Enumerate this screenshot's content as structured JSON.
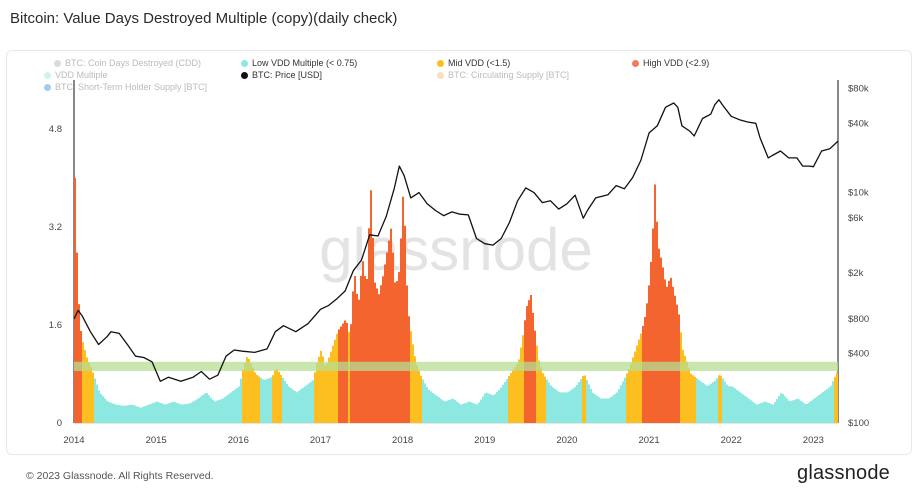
{
  "page": {
    "title": "Bitcoin: Value Days Destroyed Multiple (copy)(daily check)",
    "footer": "© 2023 Glassnode. All Rights Reserved.",
    "brand": "glassnode",
    "watermark": "glassnode"
  },
  "legend": [
    {
      "label": "BTC: Coin Days Destroyed (CDD)",
      "color": "#b0b0b0",
      "faded": true
    },
    {
      "label": "Low VDD Multiple (< 0.75)",
      "color": "#8ee8e2",
      "faded": false
    },
    {
      "label": "Mid VDD (<1.5)",
      "color": "#fdbf1f",
      "faded": false
    },
    {
      "label": "High VDD (<2.9)",
      "color": "#f47a5e",
      "faded": false
    },
    {
      "label": "VDD Multiple",
      "color": "#8ee8e2",
      "faded": true
    },
    {
      "label": "BTC: Price [USD]",
      "color": "#111111",
      "faded": false
    },
    {
      "label": "BTC: Circulating Supply [BTC]",
      "color": "#f7b86a",
      "faded": true
    },
    {
      "label": "BTC: Short-Term Holder Supply [BTC]",
      "color": "#2f8fe0",
      "faded": true
    }
  ],
  "chart_data": {
    "type": "area",
    "x_range": [
      2014.0,
      2023.3
    ],
    "x_ticks": [
      "2014",
      "2015",
      "2016",
      "2017",
      "2018",
      "2019",
      "2020",
      "2021",
      "2022",
      "2023"
    ],
    "y_left": {
      "range": [
        0,
        5.6
      ],
      "ticks": [
        "0",
        "1.6",
        "3.2",
        "4.8"
      ]
    },
    "y_right": {
      "scale": "log",
      "range": [
        100,
        95000
      ],
      "ticks": [
        "$100",
        "$400",
        "$800",
        "$2k",
        "$6k",
        "$10k",
        "$40k",
        "$80k"
      ]
    },
    "bands": {
      "low_max": 0.75,
      "mid_max": 1.5,
      "high_max": 2.9,
      "highlight_band": [
        0.85,
        1.0
      ]
    },
    "colors": {
      "low": "#8ee8e2",
      "mid": "#fdbf1f",
      "high": "#f4642e",
      "price": "#111111",
      "band": "#b7dd94"
    },
    "vdd_multiple": {
      "x": [
        2014.0,
        2014.03,
        2014.06,
        2014.1,
        2014.15,
        2014.2,
        2014.25,
        2014.3,
        2014.4,
        2014.5,
        2014.6,
        2014.7,
        2014.8,
        2014.9,
        2015.0,
        2015.1,
        2015.2,
        2015.3,
        2015.4,
        2015.5,
        2015.6,
        2015.7,
        2015.8,
        2015.9,
        2016.0,
        2016.05,
        2016.1,
        2016.2,
        2016.3,
        2016.4,
        2016.45,
        2016.5,
        2016.6,
        2016.7,
        2016.8,
        2016.9,
        2016.95,
        2017.0,
        2017.05,
        2017.1,
        2017.2,
        2017.3,
        2017.35,
        2017.4,
        2017.45,
        2017.5,
        2017.55,
        2017.6,
        2017.65,
        2017.7,
        2017.75,
        2017.8,
        2017.85,
        2017.9,
        2017.95,
        2018.0,
        2018.05,
        2018.1,
        2018.15,
        2018.2,
        2018.3,
        2018.4,
        2018.5,
        2018.6,
        2018.7,
        2018.8,
        2018.9,
        2019.0,
        2019.1,
        2019.2,
        2019.3,
        2019.4,
        2019.45,
        2019.5,
        2019.55,
        2019.6,
        2019.65,
        2019.7,
        2019.8,
        2019.9,
        2020.0,
        2020.1,
        2020.2,
        2020.3,
        2020.4,
        2020.5,
        2020.6,
        2020.7,
        2020.75,
        2020.8,
        2020.85,
        2020.9,
        2020.95,
        2021.0,
        2021.03,
        2021.06,
        2021.1,
        2021.15,
        2021.2,
        2021.25,
        2021.3,
        2021.35,
        2021.4,
        2021.5,
        2021.6,
        2021.7,
        2021.8,
        2021.85,
        2021.9,
        2021.95,
        2022.0,
        2022.1,
        2022.2,
        2022.3,
        2022.4,
        2022.5,
        2022.6,
        2022.7,
        2022.8,
        2022.9,
        2023.0,
        2023.1,
        2023.2,
        2023.3
      ],
      "y": [
        4.0,
        2.5,
        1.6,
        1.3,
        1.05,
        0.9,
        0.7,
        0.5,
        0.35,
        0.3,
        0.28,
        0.3,
        0.25,
        0.3,
        0.35,
        0.3,
        0.35,
        0.3,
        0.32,
        0.4,
        0.5,
        0.35,
        0.4,
        0.5,
        0.6,
        0.9,
        1.1,
        0.8,
        0.7,
        0.75,
        0.9,
        0.8,
        0.6,
        0.5,
        0.6,
        0.7,
        1.0,
        1.2,
        0.9,
        1.1,
        1.5,
        1.7,
        1.4,
        2.5,
        1.9,
        2.7,
        2.2,
        3.9,
        2.3,
        2.1,
        2.4,
        2.8,
        3.2,
        2.2,
        2.5,
        3.9,
        1.9,
        1.4,
        1.0,
        0.8,
        0.55,
        0.45,
        0.35,
        0.4,
        0.3,
        0.35,
        0.3,
        0.5,
        0.45,
        0.6,
        0.8,
        1.0,
        1.4,
        1.9,
        2.1,
        1.5,
        1.0,
        0.8,
        0.6,
        0.5,
        0.5,
        0.6,
        0.8,
        0.5,
        0.4,
        0.4,
        0.5,
        0.75,
        0.9,
        1.1,
        1.3,
        1.5,
        1.8,
        2.4,
        3.0,
        3.9,
        2.9,
        2.6,
        2.2,
        2.4,
        2.1,
        1.8,
        1.2,
        0.8,
        0.7,
        0.6,
        0.7,
        0.8,
        0.7,
        0.6,
        0.6,
        0.5,
        0.4,
        0.3,
        0.35,
        0.3,
        0.5,
        0.35,
        0.4,
        0.3,
        0.4,
        0.5,
        0.6,
        0.9
      ]
    },
    "price": {
      "x": [
        2014.0,
        2014.05,
        2014.1,
        2014.2,
        2014.3,
        2014.4,
        2014.45,
        2014.55,
        2014.65,
        2014.75,
        2014.85,
        2014.95,
        2015.05,
        2015.15,
        2015.3,
        2015.45,
        2015.55,
        2015.65,
        2015.75,
        2015.85,
        2015.95,
        2016.05,
        2016.2,
        2016.35,
        2016.45,
        2016.55,
        2016.7,
        2016.85,
        2017.0,
        2017.1,
        2017.2,
        2017.3,
        2017.4,
        2017.5,
        2017.6,
        2017.7,
        2017.8,
        2017.9,
        2017.96,
        2018.02,
        2018.1,
        2018.2,
        2018.3,
        2018.4,
        2018.5,
        2018.6,
        2018.7,
        2018.8,
        2018.9,
        2019.0,
        2019.1,
        2019.2,
        2019.3,
        2019.4,
        2019.5,
        2019.6,
        2019.7,
        2019.8,
        2019.9,
        2020.0,
        2020.1,
        2020.2,
        2020.25,
        2020.35,
        2020.5,
        2020.6,
        2020.7,
        2020.8,
        2020.9,
        2021.0,
        2021.1,
        2021.2,
        2021.3,
        2021.35,
        2021.4,
        2021.5,
        2021.55,
        2021.65,
        2021.75,
        2021.8,
        2021.85,
        2021.9,
        2022.0,
        2022.1,
        2022.2,
        2022.3,
        2022.35,
        2022.45,
        2022.5,
        2022.6,
        2022.7,
        2022.8,
        2022.87,
        2022.95,
        2023.0,
        2023.1,
        2023.2,
        2023.3
      ],
      "y": [
        800,
        950,
        850,
        620,
        480,
        560,
        620,
        600,
        480,
        380,
        370,
        340,
        230,
        250,
        230,
        250,
        280,
        240,
        260,
        380,
        430,
        420,
        410,
        440,
        620,
        700,
        620,
        730,
        970,
        1050,
        1200,
        1400,
        2100,
        2600,
        4300,
        4200,
        6200,
        11000,
        17000,
        14000,
        9000,
        10000,
        8000,
        7000,
        6300,
        6800,
        6500,
        6400,
        4000,
        3600,
        3500,
        4000,
        5500,
        8500,
        11000,
        10000,
        8200,
        8500,
        7200,
        8000,
        9500,
        6000,
        7000,
        9000,
        9600,
        11500,
        10800,
        13500,
        19000,
        33000,
        38000,
        55000,
        60000,
        55000,
        38000,
        34000,
        31000,
        44000,
        48000,
        58000,
        64000,
        57000,
        46000,
        43000,
        41000,
        40000,
        30000,
        20000,
        21000,
        23000,
        20000,
        20000,
        17000,
        17000,
        16800,
        23000,
        24000,
        28000
      ]
    }
  }
}
